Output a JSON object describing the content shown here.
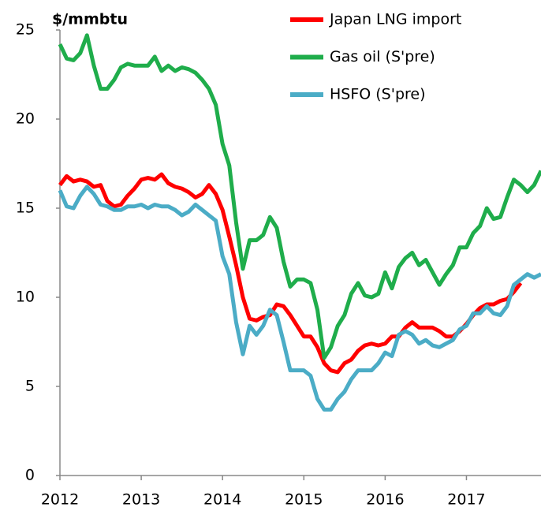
{
  "chart_data": {
    "type": "line",
    "y_label": "$/mmbtu",
    "x": [
      2012,
      2012.083,
      2012.167,
      2012.25,
      2012.333,
      2012.417,
      2012.5,
      2012.583,
      2012.667,
      2012.75,
      2012.833,
      2012.917,
      2013,
      2013.083,
      2013.167,
      2013.25,
      2013.333,
      2013.417,
      2013.5,
      2013.583,
      2013.667,
      2013.75,
      2013.833,
      2013.917,
      2014,
      2014.083,
      2014.167,
      2014.25,
      2014.333,
      2014.417,
      2014.5,
      2014.583,
      2014.667,
      2014.75,
      2014.833,
      2014.917,
      2015,
      2015.083,
      2015.167,
      2015.25,
      2015.333,
      2015.417,
      2015.5,
      2015.583,
      2015.667,
      2015.75,
      2015.833,
      2015.917,
      2016,
      2016.083,
      2016.167,
      2016.25,
      2016.333,
      2016.417,
      2016.5,
      2016.583,
      2016.667,
      2016.75,
      2016.833,
      2016.917,
      2017,
      2017.083,
      2017.167,
      2017.25,
      2017.333,
      2017.417,
      2017.5,
      2017.583,
      2017.667,
      2017.75,
      2017.833,
      2017.917
    ],
    "series": [
      {
        "name": "Japan LNG import",
        "color": "#ff0000",
        "values": [
          16.3,
          16.8,
          16.5,
          16.6,
          16.5,
          16.2,
          16.3,
          15.4,
          15.1,
          15.2,
          15.7,
          16.1,
          16.6,
          16.7,
          16.6,
          16.9,
          16.4,
          16.2,
          16.1,
          15.9,
          15.6,
          15.8,
          16.3,
          15.8,
          14.9,
          13.4,
          11.8,
          10.0,
          8.8,
          8.7,
          8.9,
          9.0,
          9.6,
          9.5,
          9.0,
          8.4,
          7.8,
          7.8,
          7.2,
          6.3,
          5.9,
          5.8,
          6.3,
          6.5,
          7.0,
          7.3,
          7.4,
          7.3,
          7.4,
          7.8,
          7.8,
          8.3,
          8.6,
          8.3,
          8.3,
          8.3,
          8.1,
          7.8,
          7.8,
          8.1,
          8.5,
          9.0,
          9.4,
          9.6,
          9.6,
          9.8,
          9.9,
          10.3,
          10.8,
          null,
          null,
          null
        ]
      },
      {
        "name": "Gas oil (S'pre)",
        "color": "#1fad4b",
        "values": [
          24.2,
          23.4,
          23.3,
          23.7,
          24.7,
          23.0,
          21.7,
          21.7,
          22.2,
          22.9,
          23.1,
          23.0,
          23.0,
          23.0,
          23.5,
          22.7,
          23.0,
          22.7,
          22.9,
          22.8,
          22.6,
          22.2,
          21.7,
          20.8,
          18.6,
          17.4,
          14.2,
          11.6,
          13.2,
          13.2,
          13.5,
          14.5,
          13.9,
          12.0,
          10.6,
          11.0,
          11.0,
          10.8,
          9.3,
          6.6,
          7.2,
          8.4,
          9.0,
          10.2,
          10.8,
          10.1,
          10.0,
          10.2,
          11.4,
          10.5,
          11.7,
          12.2,
          12.5,
          11.8,
          12.1,
          11.4,
          10.7,
          11.3,
          11.8,
          12.8,
          12.8,
          13.6,
          14.0,
          15.0,
          14.4,
          14.5,
          15.6,
          16.6,
          16.3,
          15.9,
          16.3,
          17.1
        ]
      },
      {
        "name": "HSFO (S'pre)",
        "color": "#4bacc6",
        "values": [
          16.0,
          15.1,
          15.0,
          15.7,
          16.2,
          15.8,
          15.2,
          15.1,
          14.9,
          14.9,
          15.1,
          15.1,
          15.2,
          15.0,
          15.2,
          15.1,
          15.1,
          14.9,
          14.6,
          14.8,
          15.2,
          14.9,
          14.6,
          14.3,
          12.3,
          11.3,
          8.6,
          6.8,
          8.4,
          7.9,
          8.4,
          9.3,
          9.0,
          7.5,
          5.9,
          5.9,
          5.9,
          5.6,
          4.3,
          3.7,
          3.7,
          4.3,
          4.7,
          5.4,
          5.9,
          5.9,
          5.9,
          6.3,
          6.9,
          6.7,
          7.9,
          8.1,
          7.9,
          7.4,
          7.6,
          7.3,
          7.2,
          7.4,
          7.6,
          8.2,
          8.4,
          9.1,
          9.1,
          9.5,
          9.1,
          9.0,
          9.5,
          10.7,
          11.0,
          11.3,
          11.1,
          11.3
        ]
      }
    ],
    "xlim": [
      2012,
      2017.917
    ],
    "xticks": [
      2012,
      2013,
      2014,
      2015,
      2016,
      2017
    ],
    "ylim": [
      0,
      25
    ],
    "yticks": [
      0,
      5,
      10,
      15,
      20,
      25
    ],
    "grid": false,
    "legend": "top-right"
  }
}
